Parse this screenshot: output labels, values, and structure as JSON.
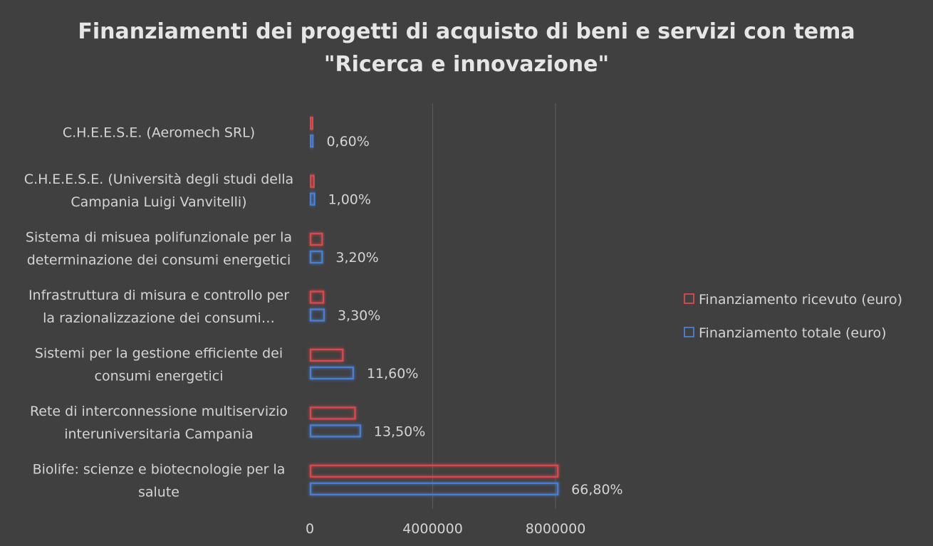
{
  "chart_data": {
    "type": "bar",
    "orientation": "horizontal",
    "title": "Finanziamenti dei progetti di acquisto di beni e servizi con tema \"Ricerca e innovazione\"",
    "title_lines": [
      "Finanziamenti dei progetti di acquisto di beni e servizi con tema",
      "\"Ricerca e innovazione\""
    ],
    "categories": [
      "C.H.E.E.S.E. (Aeromech SRL)",
      "C.H.E.E.S.E. (Università degli studi della Campania Luigi Vanvitelli)",
      "Sistema di misuea polifunzionale per la determinazione dei consumi energetici",
      "Infrastruttura di misura e controllo per la razionalizzazione dei consumi…",
      "Sistemi per la gestione efficiente dei consumi energetici",
      "Rete di interconnessione multiservizio interuniversitaria Campania",
      "Biolife: scienze e biotecnologie per la salute"
    ],
    "category_lines": [
      [
        "C.H.E.E.S.E. (Aeromech SRL)"
      ],
      [
        "C.H.E.E.S.E. (Università degli studi della",
        "Campania Luigi Vanvitelli)"
      ],
      [
        "Sistema di misuea polifunzionale per la",
        "determinazione dei consumi energetici"
      ],
      [
        "Infrastruttura di misura e controllo per",
        "la razionalizzazione dei consumi…"
      ],
      [
        "Sistemi per la gestione efficiente dei",
        "consumi energetici"
      ],
      [
        "Rete di interconnessione multiservizio",
        "interuniversitaria Campania"
      ],
      [
        "Biolife: scienze e biotecnologie per la",
        "salute"
      ]
    ],
    "series": [
      {
        "name": "Finanziamento ricevuto (euro)",
        "color": "#e0474c",
        "values": [
          60000,
          110000,
          380000,
          420000,
          1050000,
          1450000,
          8050000
        ]
      },
      {
        "name": "Finanziamento totale (euro)",
        "color": "#4a7fd4",
        "values": [
          80000,
          130000,
          380000,
          440000,
          1390000,
          1620000,
          8050000
        ],
        "data_labels": [
          "0,60%",
          "1,00%",
          "3,20%",
          "3,30%",
          "11,60%",
          "13,50%",
          "66,80%"
        ]
      }
    ],
    "xlim": [
      0,
      9000000
    ],
    "xticks": [
      0,
      4000000,
      8000000
    ],
    "xtick_labels": [
      "0",
      "4000000",
      "8000000"
    ],
    "xlabel": "",
    "ylabel": "",
    "grid": true,
    "legend_position": "right"
  }
}
